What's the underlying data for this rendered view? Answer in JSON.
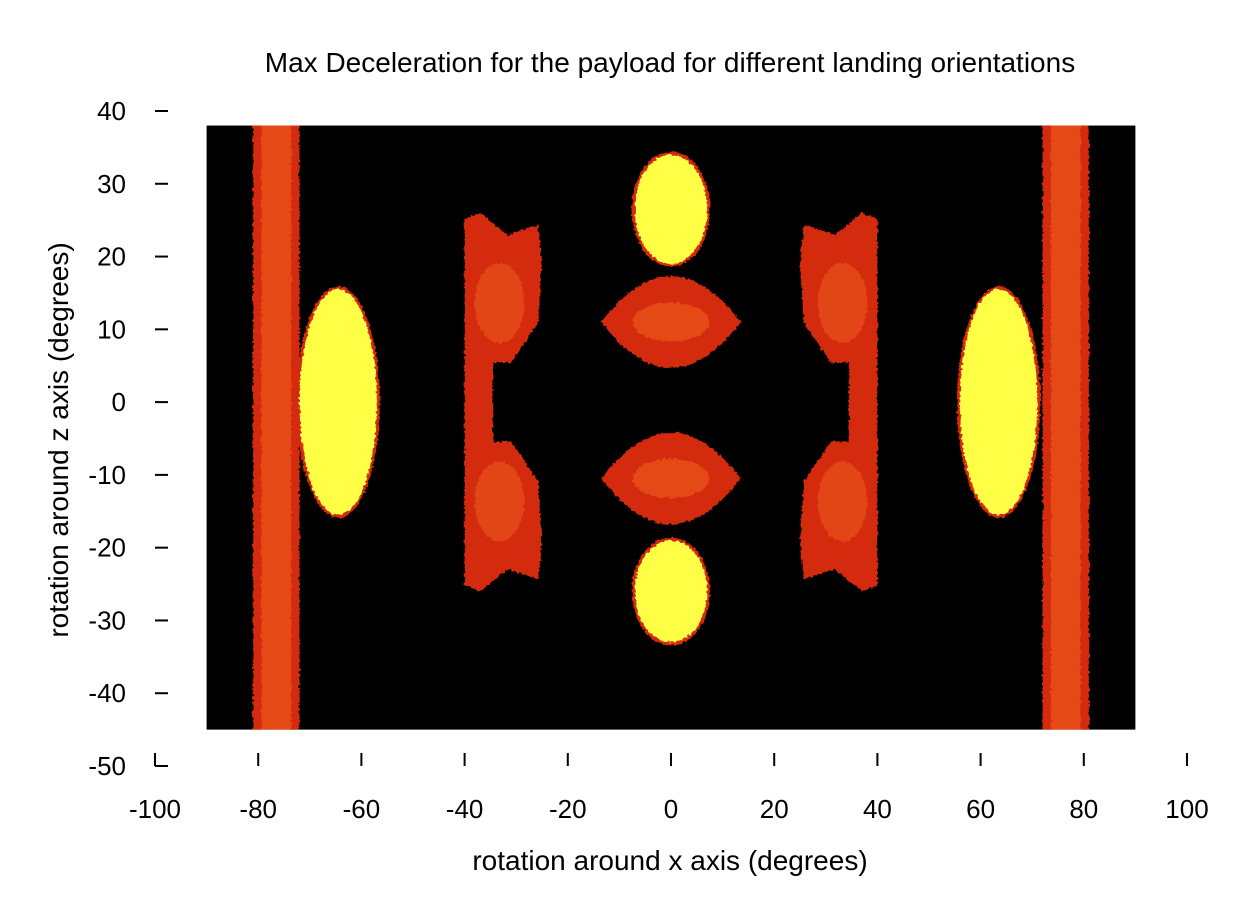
{
  "chart_data": {
    "type": "heatmap",
    "title": "Max Deceleration for the payload for different landing orientations",
    "xlabel": "rotation around x axis (degrees)",
    "ylabel": "rotation around z axis (degrees)",
    "xlim": [
      -100,
      100
    ],
    "ylim": [
      -50,
      40
    ],
    "x_ticks": [
      -100,
      -80,
      -60,
      -40,
      -20,
      0,
      20,
      40,
      60,
      80,
      100
    ],
    "y_ticks": [
      40,
      30,
      20,
      10,
      0,
      -10,
      -20,
      -30,
      -40,
      -50
    ],
    "data_extent": {
      "x": [
        -90,
        90
      ],
      "y": [
        -45,
        38
      ]
    },
    "background_value": "low",
    "colormap": {
      "low": "#000000",
      "mid": "#d42a0f",
      "midlight": "#e8501a",
      "high": "#ffff44"
    },
    "regions": [
      {
        "name": "left-band",
        "shape": "band",
        "x_range": [
          -81,
          -72
        ],
        "y_range": [
          -45,
          38
        ],
        "level": "mid"
      },
      {
        "name": "right-band",
        "shape": "band",
        "x_range": [
          72,
          81
        ],
        "y_range": [
          -45,
          38
        ],
        "level": "mid"
      },
      {
        "name": "left-yellow-blob",
        "shape": "ellipse",
        "cx": -64.5,
        "cy": 0,
        "rx": 7.5,
        "ry": 15.5,
        "level": "high"
      },
      {
        "name": "right-yellow-blob",
        "shape": "ellipse",
        "cx": 63.5,
        "cy": 0,
        "rx": 7.5,
        "ry": 15.5,
        "level": "high"
      },
      {
        "name": "top-yellow-blob",
        "shape": "ellipse",
        "cx": 0,
        "cy": 26.5,
        "rx": 7,
        "ry": 7.5,
        "level": "high"
      },
      {
        "name": "bottom-yellow-blob",
        "shape": "ellipse",
        "cx": 0,
        "cy": -26,
        "rx": 7,
        "ry": 7,
        "level": "high"
      },
      {
        "name": "upper-center-lens",
        "shape": "lens",
        "cx": 0,
        "cy": 11,
        "rx": 13.5,
        "ry": 6,
        "level": "mid"
      },
      {
        "name": "lower-center-lens",
        "shape": "lens",
        "cx": 0,
        "cy": -10.5,
        "rx": 13.5,
        "ry": 6,
        "level": "mid"
      },
      {
        "name": "left-bracket",
        "shape": "bracket",
        "x_range": [
          -40,
          -25
        ],
        "y_range": [
          -26,
          26
        ],
        "opens": "right",
        "level": "mid"
      },
      {
        "name": "right-bracket",
        "shape": "bracket",
        "x_range": [
          25,
          40
        ],
        "y_range": [
          -26,
          26
        ],
        "opens": "left",
        "level": "mid"
      }
    ]
  }
}
